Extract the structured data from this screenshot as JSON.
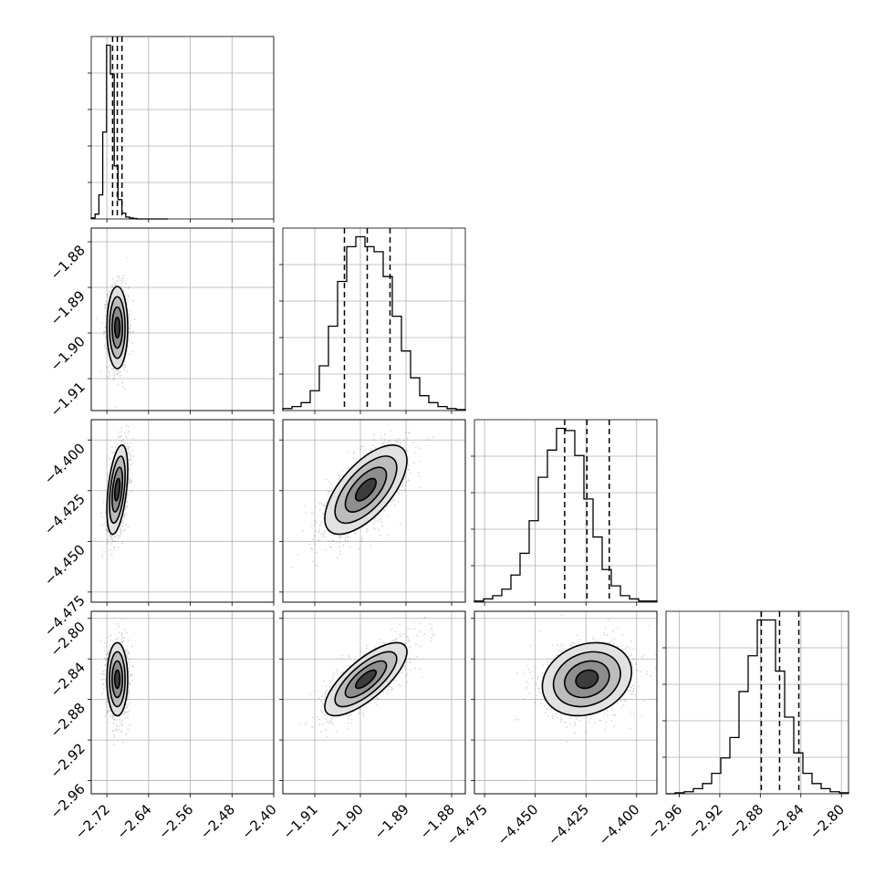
{
  "chart_data": {
    "type": "corner",
    "parameters": [
      {
        "index": 0,
        "range": [
          -2.75,
          -2.4
        ],
        "ticks": [
          -2.72,
          -2.64,
          -2.56,
          -2.48,
          -2.4
        ],
        "tick_labels": [
          "−2.72",
          "−2.64",
          "−2.56",
          "−2.48",
          "−2.40"
        ],
        "mean": -2.7,
        "std": 0.01,
        "quantiles": [
          -2.709,
          -2.7,
          -2.691
        ],
        "hist_counts": [
          2,
          10,
          50,
          180,
          360,
          300,
          110,
          40,
          12,
          4,
          2,
          1,
          0,
          0,
          0,
          0,
          0,
          0,
          0,
          0
        ]
      },
      {
        "index": 1,
        "range": [
          -1.917,
          -1.877
        ],
        "ticks": [
          -1.91,
          -1.9,
          -1.89,
          -1.88
        ],
        "tick_labels": [
          "−1.91",
          "−1.90",
          "−1.89",
          "−1.88"
        ],
        "mean": -1.8988,
        "std": 0.0045,
        "quantiles": [
          -1.9035,
          -1.8985,
          -1.8935
        ],
        "hist_counts": [
          2,
          4,
          8,
          20,
          45,
          85,
          130,
          165,
          175,
          165,
          160,
          135,
          95,
          60,
          33,
          15,
          8,
          4,
          2,
          1
        ]
      },
      {
        "index": 2,
        "range": [
          -4.48,
          -4.39
        ],
        "ticks": [
          -4.475,
          -4.45,
          -4.425,
          -4.4
        ],
        "tick_labels": [
          "−4.475",
          "−4.450",
          "−4.425",
          "−4.400"
        ],
        "mean": -4.4245,
        "std": 0.011,
        "quantiles": [
          -4.4355,
          -4.4245,
          -4.4135
        ],
        "hist_counts": [
          1,
          3,
          6,
          12,
          25,
          45,
          75,
          115,
          140,
          160,
          158,
          135,
          95,
          60,
          30,
          15,
          6,
          3,
          1,
          1
        ]
      },
      {
        "index": 3,
        "range": [
          -2.973,
          -2.793
        ],
        "ticks": [
          -2.96,
          -2.92,
          -2.88,
          -2.84,
          -2.8
        ],
        "tick_labels": [
          "−2.96",
          "−2.92",
          "−2.88",
          "−2.84",
          "−2.80"
        ],
        "mean": -2.86,
        "std": 0.018,
        "quantiles": [
          -2.879,
          -2.861,
          -2.842
        ],
        "hist_counts": [
          0,
          1,
          2,
          5,
          10,
          20,
          35,
          55,
          100,
          135,
          170,
          170,
          120,
          75,
          40,
          20,
          10,
          5,
          2,
          1
        ]
      }
    ],
    "correlations": {
      "1-0": 0.0,
      "2-0": 0.45,
      "2-1": 0.65,
      "3-0": 0.0,
      "3-1": 0.75,
      "3-2": 0.2
    },
    "contour_levels_sigma": [
      0.5,
      1.0,
      1.5,
      2.0
    ],
    "quantile_lines": "dashed",
    "grid": true,
    "title": "",
    "xlabel": "",
    "ylabel": "",
    "colors": {
      "contour": "#000000",
      "points": "#000000",
      "grid": "#b0b0b0",
      "background": "#ffffff"
    }
  }
}
